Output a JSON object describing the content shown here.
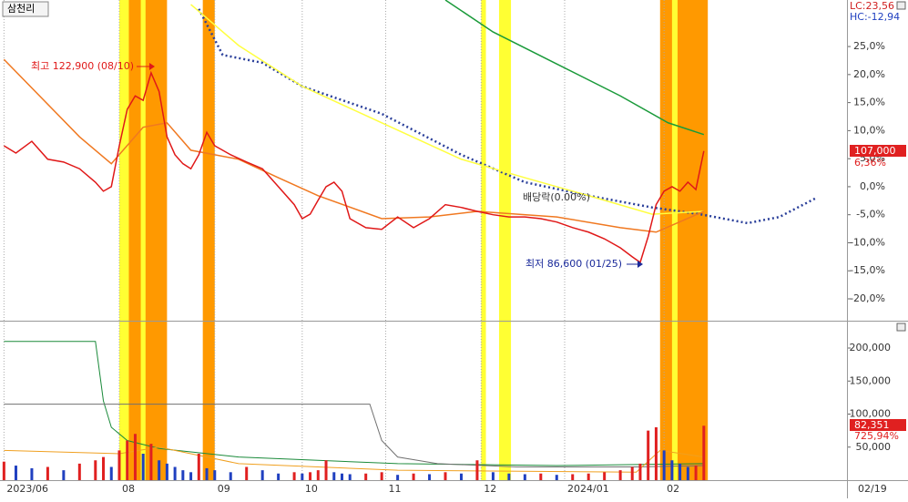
{
  "chart_data": [
    {
      "type": "line",
      "title": "삼천리",
      "xlim": [
        0,
        213
      ],
      "ylim": [
        -23.9,
        33.3
      ],
      "xticks": [
        {
          "value": 1,
          "label": "2023/06"
        },
        {
          "value": 30,
          "label": "08"
        },
        {
          "value": 54,
          "label": "09"
        },
        {
          "value": 76,
          "label": "10"
        },
        {
          "value": 97,
          "label": "11"
        },
        {
          "value": 121,
          "label": "12"
        },
        {
          "value": 142,
          "label": "2024/01"
        },
        {
          "value": 167,
          "label": "02"
        }
      ],
      "last_date_label": "02/19",
      "yticks": [
        {
          "value": 25,
          "label": "25,0%"
        },
        {
          "value": 20,
          "label": "20,0%"
        },
        {
          "value": 15,
          "label": "15,0%"
        },
        {
          "value": 10,
          "label": "10,0%"
        },
        {
          "value": 5,
          "label": "5,0%"
        },
        {
          "value": 0,
          "label": "0,0%"
        },
        {
          "value": -5,
          "label": "-5,0%"
        },
        {
          "value": -10,
          "label": "-10,0%"
        },
        {
          "value": -15,
          "label": "-15,0%"
        },
        {
          "value": -20,
          "label": "-20,0%"
        }
      ],
      "bands": [
        {
          "x": [
            30,
            42
          ],
          "color": "#ff9900"
        },
        {
          "x": [
            51,
            54
          ],
          "color": "#ff9900"
        },
        {
          "x": [
            166,
            178
          ],
          "color": "#ff9900"
        },
        {
          "x": [
            30,
            32.4
          ],
          "color": "#ffff33"
        },
        {
          "x": [
            35.4,
            36.6
          ],
          "color": "#ffff33"
        },
        {
          "x": [
            121,
            122.2
          ],
          "color": "#ffff33"
        },
        {
          "x": [
            125.5,
            128.5
          ],
          "color": "#ffff33"
        },
        {
          "x": [
            169,
            170.4
          ],
          "color": "#ffff33"
        }
      ],
      "series": [
        {
          "color": "#2a3f9a",
          "dash": true,
          "x": [
            50,
            56,
            66,
            76,
            96,
            116,
            132,
            148,
            164,
            176,
            188,
            196,
            205
          ],
          "values": [
            31.7,
            23.5,
            22.1,
            17.9,
            13,
            5.7,
            0.8,
            -1.6,
            -3.7,
            -4.9,
            -6.5,
            -5.4,
            -2.1
          ]
        },
        {
          "color": "#1a9a3a",
          "x": [
            112,
            124,
            140,
            156,
            168,
            177
          ],
          "values": [
            33.3,
            27.6,
            21.9,
            16.2,
            11.4,
            9.3
          ]
        },
        {
          "color": "#ffff40",
          "x": [
            48,
            60,
            76,
            96,
            116,
            132,
            148,
            164,
            177
          ],
          "values": [
            32.5,
            25.2,
            17.9,
            11.4,
            4.9,
            1.6,
            -1.6,
            -4.9,
            -4.4
          ]
        },
        {
          "color": "#f07820",
          "x": [
            1,
            20,
            28,
            36,
            42,
            48,
            60,
            70,
            80,
            96,
            108,
            120,
            140,
            156,
            165,
            177
          ],
          "values": [
            22.7,
            8.9,
            4.1,
            10.6,
            11.4,
            6.5,
            4.9,
            1.6,
            -1.6,
            -5.7,
            -5.4,
            -4.4,
            -5.4,
            -7.3,
            -8.1,
            -4.4
          ]
        },
        {
          "color": "#e01818",
          "x": [
            1,
            4,
            8,
            12,
            16,
            20,
            24,
            26,
            28,
            30,
            32,
            34,
            36,
            38,
            40,
            42,
            44,
            46,
            48,
            50,
            52,
            54,
            58,
            62,
            66,
            70,
            74,
            76,
            78,
            80,
            82,
            84,
            86,
            88,
            92,
            96,
            100,
            104,
            108,
            112,
            116,
            120,
            124,
            128,
            132,
            136,
            140,
            144,
            148,
            152,
            156,
            159,
            161,
            163,
            165,
            167,
            169,
            171,
            173,
            175,
            177
          ],
          "values": [
            7.3,
            6,
            8.1,
            4.9,
            4.4,
            3.2,
            0.8,
            -0.8,
            0,
            7.3,
            13.8,
            16.2,
            15.4,
            20.3,
            17,
            8.9,
            5.7,
            4.1,
            3.2,
            5.7,
            9.7,
            7.3,
            5.7,
            4.4,
            3.2,
            0,
            -3.2,
            -5.7,
            -4.9,
            -2.4,
            0,
            0.8,
            -0.8,
            -5.7,
            -7.3,
            -7.6,
            -5.4,
            -7.3,
            -5.7,
            -3.2,
            -3.7,
            -4.4,
            -5,
            -5.4,
            -5.4,
            -5.7,
            -6.3,
            -7.3,
            -8.1,
            -9.3,
            -10.9,
            -12.5,
            -13.5,
            -8.9,
            -3.2,
            -0.8,
            0,
            -0.8,
            0.8,
            -0.5,
            6.36
          ]
        }
      ],
      "high_label": "최고 122,900 (08/10)",
      "low_label": "최저 86,600 (01/25)",
      "dividend_label": "배당락(0.00%)",
      "lc_label": "LC:23,56",
      "hc_label": "HC:-12,94",
      "price_label": "107,000",
      "change_label": "6,36%"
    },
    {
      "type": "bar",
      "xlim": [
        0,
        213
      ],
      "ylim": [
        0,
        240000
      ],
      "yticks": [
        {
          "value": 200000,
          "label": "200,000"
        },
        {
          "value": 150000,
          "label": "150,000"
        },
        {
          "value": 100000,
          "label": "100,000"
        },
        {
          "value": 50000,
          "label": "50,000"
        }
      ],
      "x": [
        1,
        4,
        8,
        12,
        16,
        20,
        24,
        26,
        28,
        30,
        32,
        34,
        36,
        38,
        40,
        42,
        44,
        46,
        48,
        50,
        52,
        54,
        58,
        62,
        66,
        70,
        74,
        76,
        78,
        80,
        82,
        84,
        86,
        88,
        92,
        96,
        100,
        104,
        108,
        112,
        116,
        120,
        124,
        128,
        132,
        136,
        140,
        144,
        148,
        152,
        156,
        159,
        161,
        163,
        165,
        167,
        169,
        171,
        173,
        175,
        177
      ],
      "values": [
        28000,
        22000,
        18000,
        20000,
        15000,
        25000,
        30000,
        35000,
        20000,
        45000,
        60000,
        70000,
        40000,
        55000,
        30000,
        25000,
        20000,
        15000,
        12000,
        40000,
        18000,
        15000,
        12000,
        20000,
        15000,
        10000,
        12000,
        10000,
        12000,
        15000,
        30000,
        12000,
        10000,
        9000,
        10000,
        12000,
        8000,
        10000,
        9000,
        12000,
        10000,
        30000,
        12000,
        10000,
        9000,
        10000,
        8000,
        9000,
        10000,
        12000,
        15000,
        20000,
        25000,
        75000,
        80000,
        45000,
        30000,
        25000,
        20000,
        22000,
        82351
      ],
      "colors": [
        "#e02020",
        "#2040c0"
      ],
      "lines": [
        {
          "color": "#1a8a3a",
          "x": [
            1,
            24,
            26,
            28,
            32,
            40,
            60,
            100,
            140,
            177
          ],
          "values": [
            210000,
            210000,
            120000,
            80000,
            60000,
            48000,
            35000,
            25000,
            22000,
            25000
          ]
        },
        {
          "color": "#707070",
          "x": [
            1,
            93,
            96,
            100,
            110,
            130,
            160,
            177
          ],
          "values": [
            115000,
            115000,
            60000,
            35000,
            25000,
            20000,
            20000,
            22000
          ]
        },
        {
          "color": "#f0a020",
          "x": [
            1,
            30,
            40,
            60,
            100,
            160,
            166,
            177
          ],
          "values": [
            45000,
            40000,
            50000,
            25000,
            15000,
            12000,
            45000,
            35000
          ]
        }
      ],
      "volume_label": "82,351",
      "ratio_label": "725,94%"
    }
  ]
}
